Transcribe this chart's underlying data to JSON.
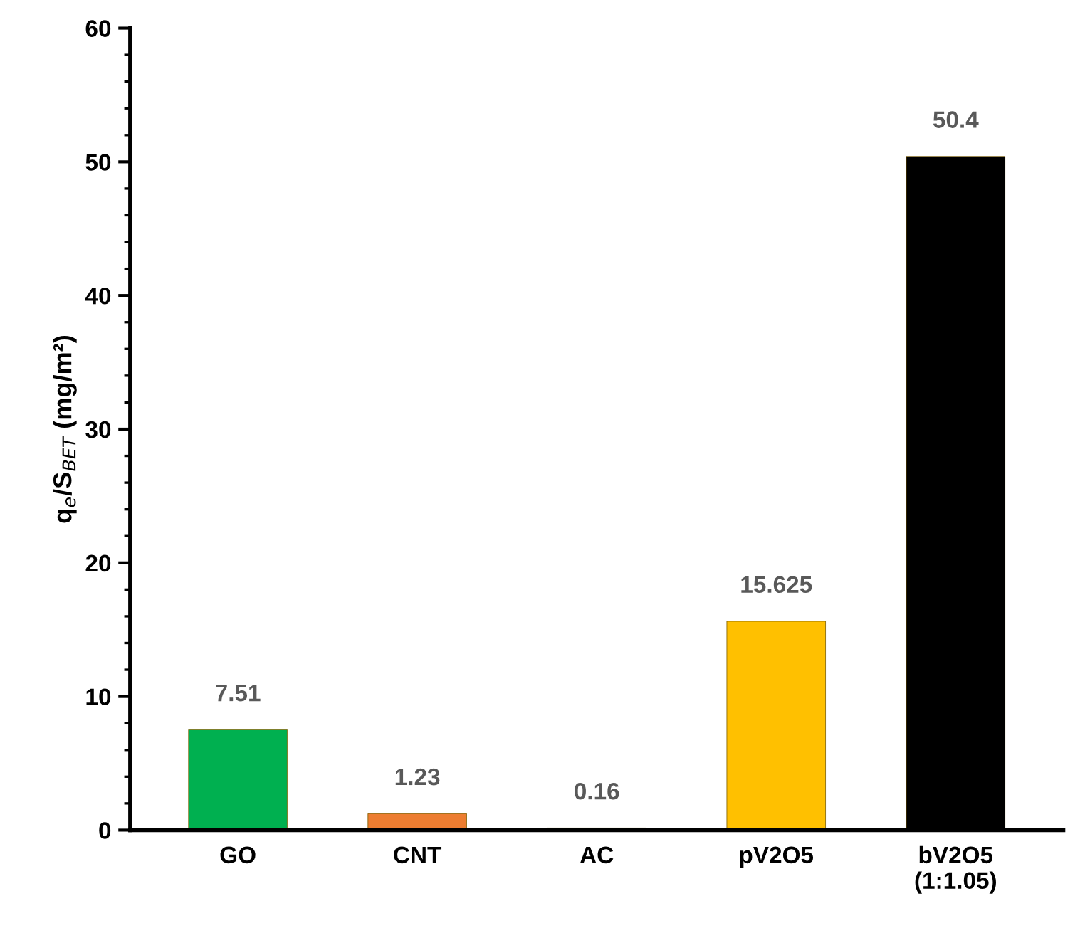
{
  "chart_data": {
    "type": "bar",
    "ylabel": "q$_{e}$/S$_{BET}$ (mg/m²)",
    "categories": [
      "GO",
      "CNT",
      "AC",
      "pV2O5",
      "bV2O5\n(1:1.05)"
    ],
    "values": [
      7.51,
      1.23,
      0.16,
      15.625,
      50.4
    ],
    "colors": [
      "#00b050",
      "#ed7d31",
      "#a5a5a5",
      "#ffc000",
      "#000000"
    ],
    "ylim": [
      0,
      60
    ],
    "yticks": [
      0,
      10,
      20,
      30,
      40,
      50,
      60
    ],
    "data_labels": true,
    "grid": false,
    "legend": false
  }
}
